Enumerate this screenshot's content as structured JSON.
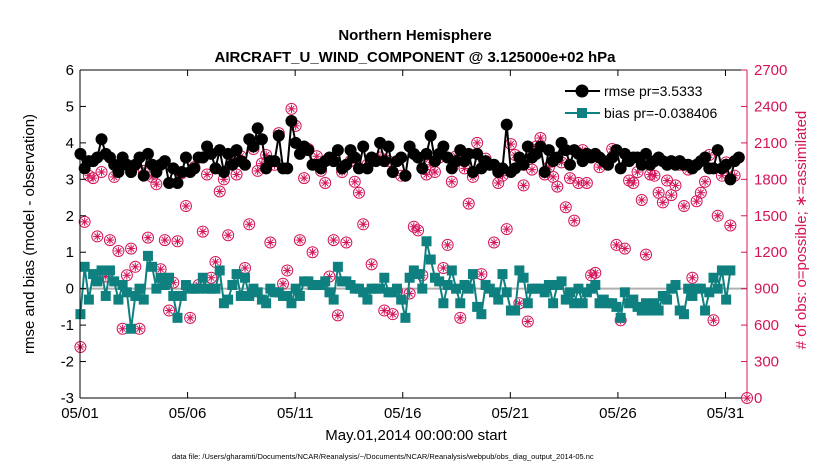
{
  "chart_data": {
    "type": "line",
    "title": "Northern Hemisphere",
    "subtitle": "AIRCRAFT_U_WIND_COMPONENT @ 3.125000e+02 hPa",
    "xlabel": "May.01,2014 00:00:00 start",
    "ylabel": "rmse and bias (model - observation)",
    "ylabel_right": "# of obs: o=possible; ∗=assimilated",
    "ylim": [
      -3,
      6
    ],
    "ylim_right": [
      0,
      2700
    ],
    "xlim": [
      0,
      31
    ],
    "x_tick_labels": [
      "05/01",
      "05/06",
      "05/11",
      "05/16",
      "05/21",
      "05/26",
      "05/31"
    ],
    "y_tick_labels": [
      "-3",
      "-2",
      "-1",
      "0",
      "1",
      "2",
      "3",
      "4",
      "5",
      "6"
    ],
    "y_right_tick_labels": [
      "0",
      "300",
      "600",
      "900",
      "1200",
      "1500",
      "1800",
      "2100",
      "2400",
      "2700"
    ],
    "legend_position": "top-right",
    "footer": "data file: /Users/gharamti/Documents/NCAR/Reanalysis/~/Documents/NCAR/Reanalysis/webpub/obs_diag_output_2014-05.nc",
    "series": [
      {
        "name": "rmse pr=3.5333",
        "axis": "left",
        "color": "#000000",
        "values": [
          3.7,
          3.3,
          3.5,
          3.5,
          3.6,
          4.1,
          3.7,
          3.6,
          3.4,
          3.2,
          3.6,
          3.4,
          3.2,
          3.4,
          3.6,
          3.1,
          3.7,
          3.4,
          3.2,
          3.4,
          3.5,
          2.9,
          3.3,
          2.9,
          3.2,
          3.6,
          3.2,
          3.3,
          3.6,
          3.6,
          3.9,
          3.7,
          3.3,
          3.8,
          3.2,
          3.7,
          3.4,
          3.8,
          3.5,
          3.4,
          4.1,
          3.9,
          4.4,
          4.1,
          3.3,
          3.5,
          3.5,
          4.2,
          3.3,
          3.3,
          4.6,
          4.0,
          3.7,
          3.9,
          3.8,
          3.4,
          3.4,
          3.3,
          3.5,
          3.6,
          3.5,
          3.8,
          3.3,
          3.4,
          3.8,
          3.6,
          3.3,
          3.9,
          3.3,
          3.6,
          3.5,
          4.0,
          3.5,
          3.9,
          3.2,
          3.5,
          3.6,
          3.1,
          3.9,
          3.7,
          3.6,
          3.3,
          3.7,
          4.2,
          3.5,
          3.7,
          3.9,
          3.6,
          3.3,
          3.5,
          3.8,
          3.5,
          3.7,
          3.2,
          3.7,
          3.3,
          3.5,
          3.4,
          3.4,
          3.2,
          3.3,
          4.5,
          3.2,
          3.3,
          3.6,
          3.4,
          3.9,
          3.6,
          3.7,
          3.9,
          3.2,
          3.8,
          3.5,
          3.6,
          4.0,
          3.8,
          3.4,
          3.8,
          3.7,
          3.5,
          3.7,
          3.6,
          3.7,
          3.6,
          3.5,
          3.4,
          3.6,
          3.8,
          3.3,
          3.7,
          3.5,
          3.6,
          3.6,
          3.4,
          3.7,
          3.4,
          3.5,
          3.6,
          3.5,
          3.4,
          3.5,
          3.4,
          3.5,
          3.4,
          3.4,
          3.3,
          3.4,
          3.5,
          3.6,
          3.3,
          3.3,
          3.8,
          3.3,
          3.4,
          3.0,
          3.5,
          3.6
        ]
      },
      {
        "name": "bias pr=-0.038406",
        "axis": "left",
        "color": "#0f8080",
        "values": [
          -0.7,
          0.6,
          -0.3,
          0.4,
          0.2,
          0.5,
          -0.2,
          0.5,
          0.2,
          -0.3,
          0.1,
          -0.1,
          -1.1,
          -0.2,
          0.0,
          -0.3,
          0.9,
          0.6,
          0.0,
          0.3,
          0.1,
          0.3,
          -0.2,
          -0.8,
          -0.2,
          0.1,
          0.0,
          0.0,
          0.0,
          0.3,
          0.0,
          0.0,
          0.0,
          0.5,
          -0.4,
          -0.3,
          0.1,
          0.4,
          -0.2,
          0.3,
          -0.2,
          0.0,
          -0.1,
          -0.3,
          -0.4,
          0.0,
          -0.1,
          -0.1,
          -0.2,
          -0.2,
          -0.4,
          0.0,
          -0.2,
          0.2,
          0.2,
          0.1,
          0.1,
          0.1,
          0.2,
          -0.1,
          -0.3,
          0.6,
          0.2,
          0.2,
          0.1,
          0.0,
          0.0,
          -0.1,
          -0.3,
          0.0,
          0.0,
          0.0,
          0.3,
          -0.1,
          -0.1,
          0.0,
          -0.3,
          -0.8,
          0.3,
          0.5,
          0.4,
          0.0,
          1.3,
          0.8,
          0.3,
          0.2,
          -0.4,
          0.1,
          0.5,
          0.0,
          -0.4,
          0.1,
          0.0,
          0.4,
          -0.5,
          -0.7,
          0.1,
          0.0,
          -0.1,
          -0.3,
          0.4,
          -0.1,
          -0.6,
          -0.6,
          0.5,
          0.3,
          -0.4,
          0.0,
          0.0,
          0.0,
          -0.1,
          0.1,
          -0.4,
          0.1,
          0.2,
          -0.3,
          -0.1,
          -0.4,
          0.0,
          -0.4,
          -0.1,
          0.0,
          0.1,
          -0.4,
          -0.3,
          -0.4,
          -0.4,
          -0.5,
          -0.8,
          -0.1,
          -0.4,
          -0.3,
          -0.5,
          -0.6,
          -0.4,
          -0.6,
          -0.4,
          -0.6,
          -0.2,
          -0.3,
          0.0,
          0.1,
          -0.6,
          -0.7,
          0.0,
          -0.2,
          0.0,
          0.0,
          -0.6,
          -0.1,
          0.3,
          0.0,
          0.5,
          -0.3,
          0.5
        ]
      },
      {
        "name": "# of obs possible",
        "axis": "right",
        "color": "#d4145a",
        "values": [
          420,
          1450,
          1830,
          1810,
          1330,
          1860,
          1000,
          1300,
          1820,
          1210,
          570,
          1010,
          1230,
          1080,
          570,
          1870,
          1320,
          1820,
          1760,
          1060,
          1300,
          720,
          950,
          1290,
          1850,
          1580,
          660,
          1900,
          930,
          1370,
          1840,
          990,
          1120,
          1700,
          1800,
          1340,
          1950,
          1840,
          1990,
          1070,
          1430,
          2050,
          1870,
          1930,
          2000,
          1280,
          1920,
          2180,
          940,
          1050,
          2380,
          2240,
          1300,
          1810,
          2050,
          1200,
          1990,
          1870,
          1770,
          1000,
          1300,
          680,
          1860,
          1280,
          1950,
          1780,
          1690,
          1430,
          1920,
          1100,
          1960,
          1980,
          720,
          1950,
          690,
          880,
          1830,
          1830,
          860,
          1410,
          1380,
          1010,
          1840,
          1920,
          1860,
          1980,
          1070,
          1260,
          1780,
          1990,
          660,
          1890,
          1600,
          1820,
          2100,
          1020,
          1970,
          1920,
          1280,
          1770,
          1830,
          1390,
          2090,
          2000,
          780,
          1750,
          630,
          1880,
          2070,
          2140,
          1840,
          1900,
          1820,
          1740,
          1940,
          1570,
          1810,
          1460,
          1770,
          2040,
          1770,
          1010,
          1030,
          1900,
          1950,
          1930,
          2050,
          1260,
          640,
          1230,
          1790,
          1770,
          1860,
          1630,
          1180,
          1840,
          1830,
          1690,
          1610,
          1790,
          1670,
          1750,
          1920,
          1580,
          1880,
          990,
          1620,
          1690,
          1780,
          2000,
          640,
          1500,
          1830,
          1940,
          1420,
          1830
        ]
      },
      {
        "name": "# of obs assimilated",
        "axis": "right",
        "color": "#d4145a",
        "values": [
          420,
          1450,
          1830,
          1810,
          1330,
          1860,
          1000,
          1300,
          1820,
          1210,
          570,
          1010,
          1230,
          1080,
          570,
          1870,
          1320,
          1820,
          1760,
          1060,
          1300,
          720,
          950,
          1290,
          1850,
          1580,
          660,
          1900,
          930,
          1370,
          1840,
          990,
          1120,
          1700,
          1800,
          1340,
          1950,
          1840,
          1990,
          1070,
          1430,
          2050,
          1870,
          1930,
          2000,
          1280,
          1920,
          2180,
          940,
          1050,
          2380,
          2240,
          1300,
          1810,
          2050,
          1200,
          1990,
          1870,
          1770,
          1000,
          1300,
          680,
          1860,
          1280,
          1950,
          1780,
          1690,
          1430,
          1920,
          1100,
          1960,
          1980,
          720,
          1950,
          690,
          880,
          1830,
          1830,
          860,
          1410,
          1380,
          1010,
          1840,
          1920,
          1860,
          1980,
          1070,
          1260,
          1780,
          1990,
          660,
          1890,
          1600,
          1820,
          2100,
          1020,
          1970,
          1920,
          1280,
          1770,
          1830,
          1390,
          2090,
          2000,
          780,
          1750,
          630,
          1880,
          2070,
          2140,
          1840,
          1900,
          1820,
          1740,
          1940,
          1570,
          1810,
          1460,
          1770,
          2040,
          1770,
          1010,
          1030,
          1900,
          1950,
          1930,
          2050,
          1260,
          640,
          1230,
          1790,
          1770,
          1860,
          1630,
          1180,
          1840,
          1830,
          1690,
          1610,
          1790,
          1670,
          1750,
          1920,
          1580,
          1880,
          990,
          1620,
          1690,
          1780,
          2000,
          640,
          1500,
          1830,
          1940,
          1420,
          1830
        ]
      }
    ],
    "last_possible_zero_count": "0"
  }
}
